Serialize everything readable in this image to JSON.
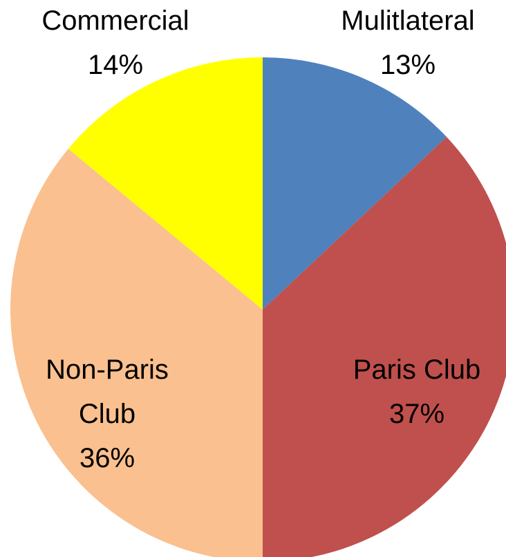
{
  "chart_data": {
    "type": "pie",
    "categories": [
      "Mulitlateral",
      "Paris Club",
      "Non-Paris Club",
      "Commercial"
    ],
    "values": [
      13,
      37,
      36,
      14
    ],
    "value_labels": [
      "13%",
      "37%",
      "36%",
      "14%"
    ],
    "colors": [
      "#4f81bd",
      "#c0504d",
      "#fac08f",
      "#ffff00"
    ]
  }
}
